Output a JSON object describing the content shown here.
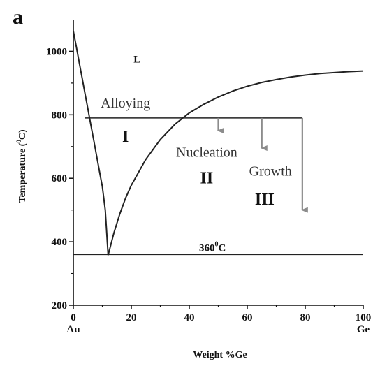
{
  "chart_data": {
    "type": "line",
    "panel_label": "a",
    "xlabel": "Weight %Ge",
    "ylabel_parts": [
      "Temperature (",
      "0",
      "C)"
    ],
    "xlim": [
      0,
      100
    ],
    "ylim": [
      200,
      1100
    ],
    "x_ticks": [
      0,
      20,
      40,
      60,
      80,
      100
    ],
    "y_ticks": [
      200,
      400,
      600,
      800,
      1000
    ],
    "x_end_labels": {
      "left": "Au",
      "right": "Ge"
    },
    "grid": false,
    "series": [
      {
        "x": [
          0,
          1,
          2,
          3,
          4,
          5,
          6,
          7,
          8,
          9,
          10,
          11,
          12
        ],
        "y": [
          1064,
          1015,
          966,
          917,
          868,
          819,
          770,
          721,
          672,
          623,
          574,
          500,
          358
        ]
      },
      {
        "x": [
          12,
          14,
          16,
          18,
          20,
          25,
          30,
          35,
          40,
          45,
          50,
          55,
          60,
          65,
          70,
          75,
          80,
          85,
          90,
          95,
          100
        ],
        "y": [
          358,
          428,
          487,
          537,
          578,
          660,
          722,
          770,
          806,
          833,
          856,
          875,
          890,
          902,
          911,
          919,
          925,
          930,
          933,
          936,
          938
        ]
      }
    ],
    "horizontal_lines": [
      {
        "y": 790,
        "x0": 4,
        "x1": 79
      },
      {
        "y": 360,
        "x0": 0,
        "x1": 100
      }
    ],
    "arrows": [
      {
        "x": 50,
        "y_from": 790,
        "y_to": 750
      },
      {
        "x": 65,
        "y_from": 790,
        "y_to": 695
      },
      {
        "x": 79,
        "y_from": 790,
        "y_to": 500
      }
    ],
    "annotations": [
      {
        "text": "L",
        "x": 22,
        "y": 965,
        "cls": "liq"
      },
      {
        "text": "Alloying",
        "x": 18,
        "y": 823,
        "cls": "ann"
      },
      {
        "text": "I",
        "x": 18,
        "y": 715,
        "cls": "region"
      },
      {
        "text": "Nucleation",
        "x": 46,
        "y": 668,
        "cls": "ann"
      },
      {
        "text": "II",
        "x": 46,
        "y": 584,
        "cls": "region"
      },
      {
        "text": "Growth",
        "x": 68,
        "y": 608,
        "cls": "ann"
      },
      {
        "text": "III",
        "x": 66,
        "y": 517,
        "cls": "region"
      }
    ],
    "temp_label": {
      "main": "360",
      "sup": "0",
      "unit": "C",
      "x": 48,
      "y": 370
    },
    "colors": {
      "curve": "#222222",
      "arrow": "#8c8c8c",
      "axis": "#111111"
    }
  }
}
